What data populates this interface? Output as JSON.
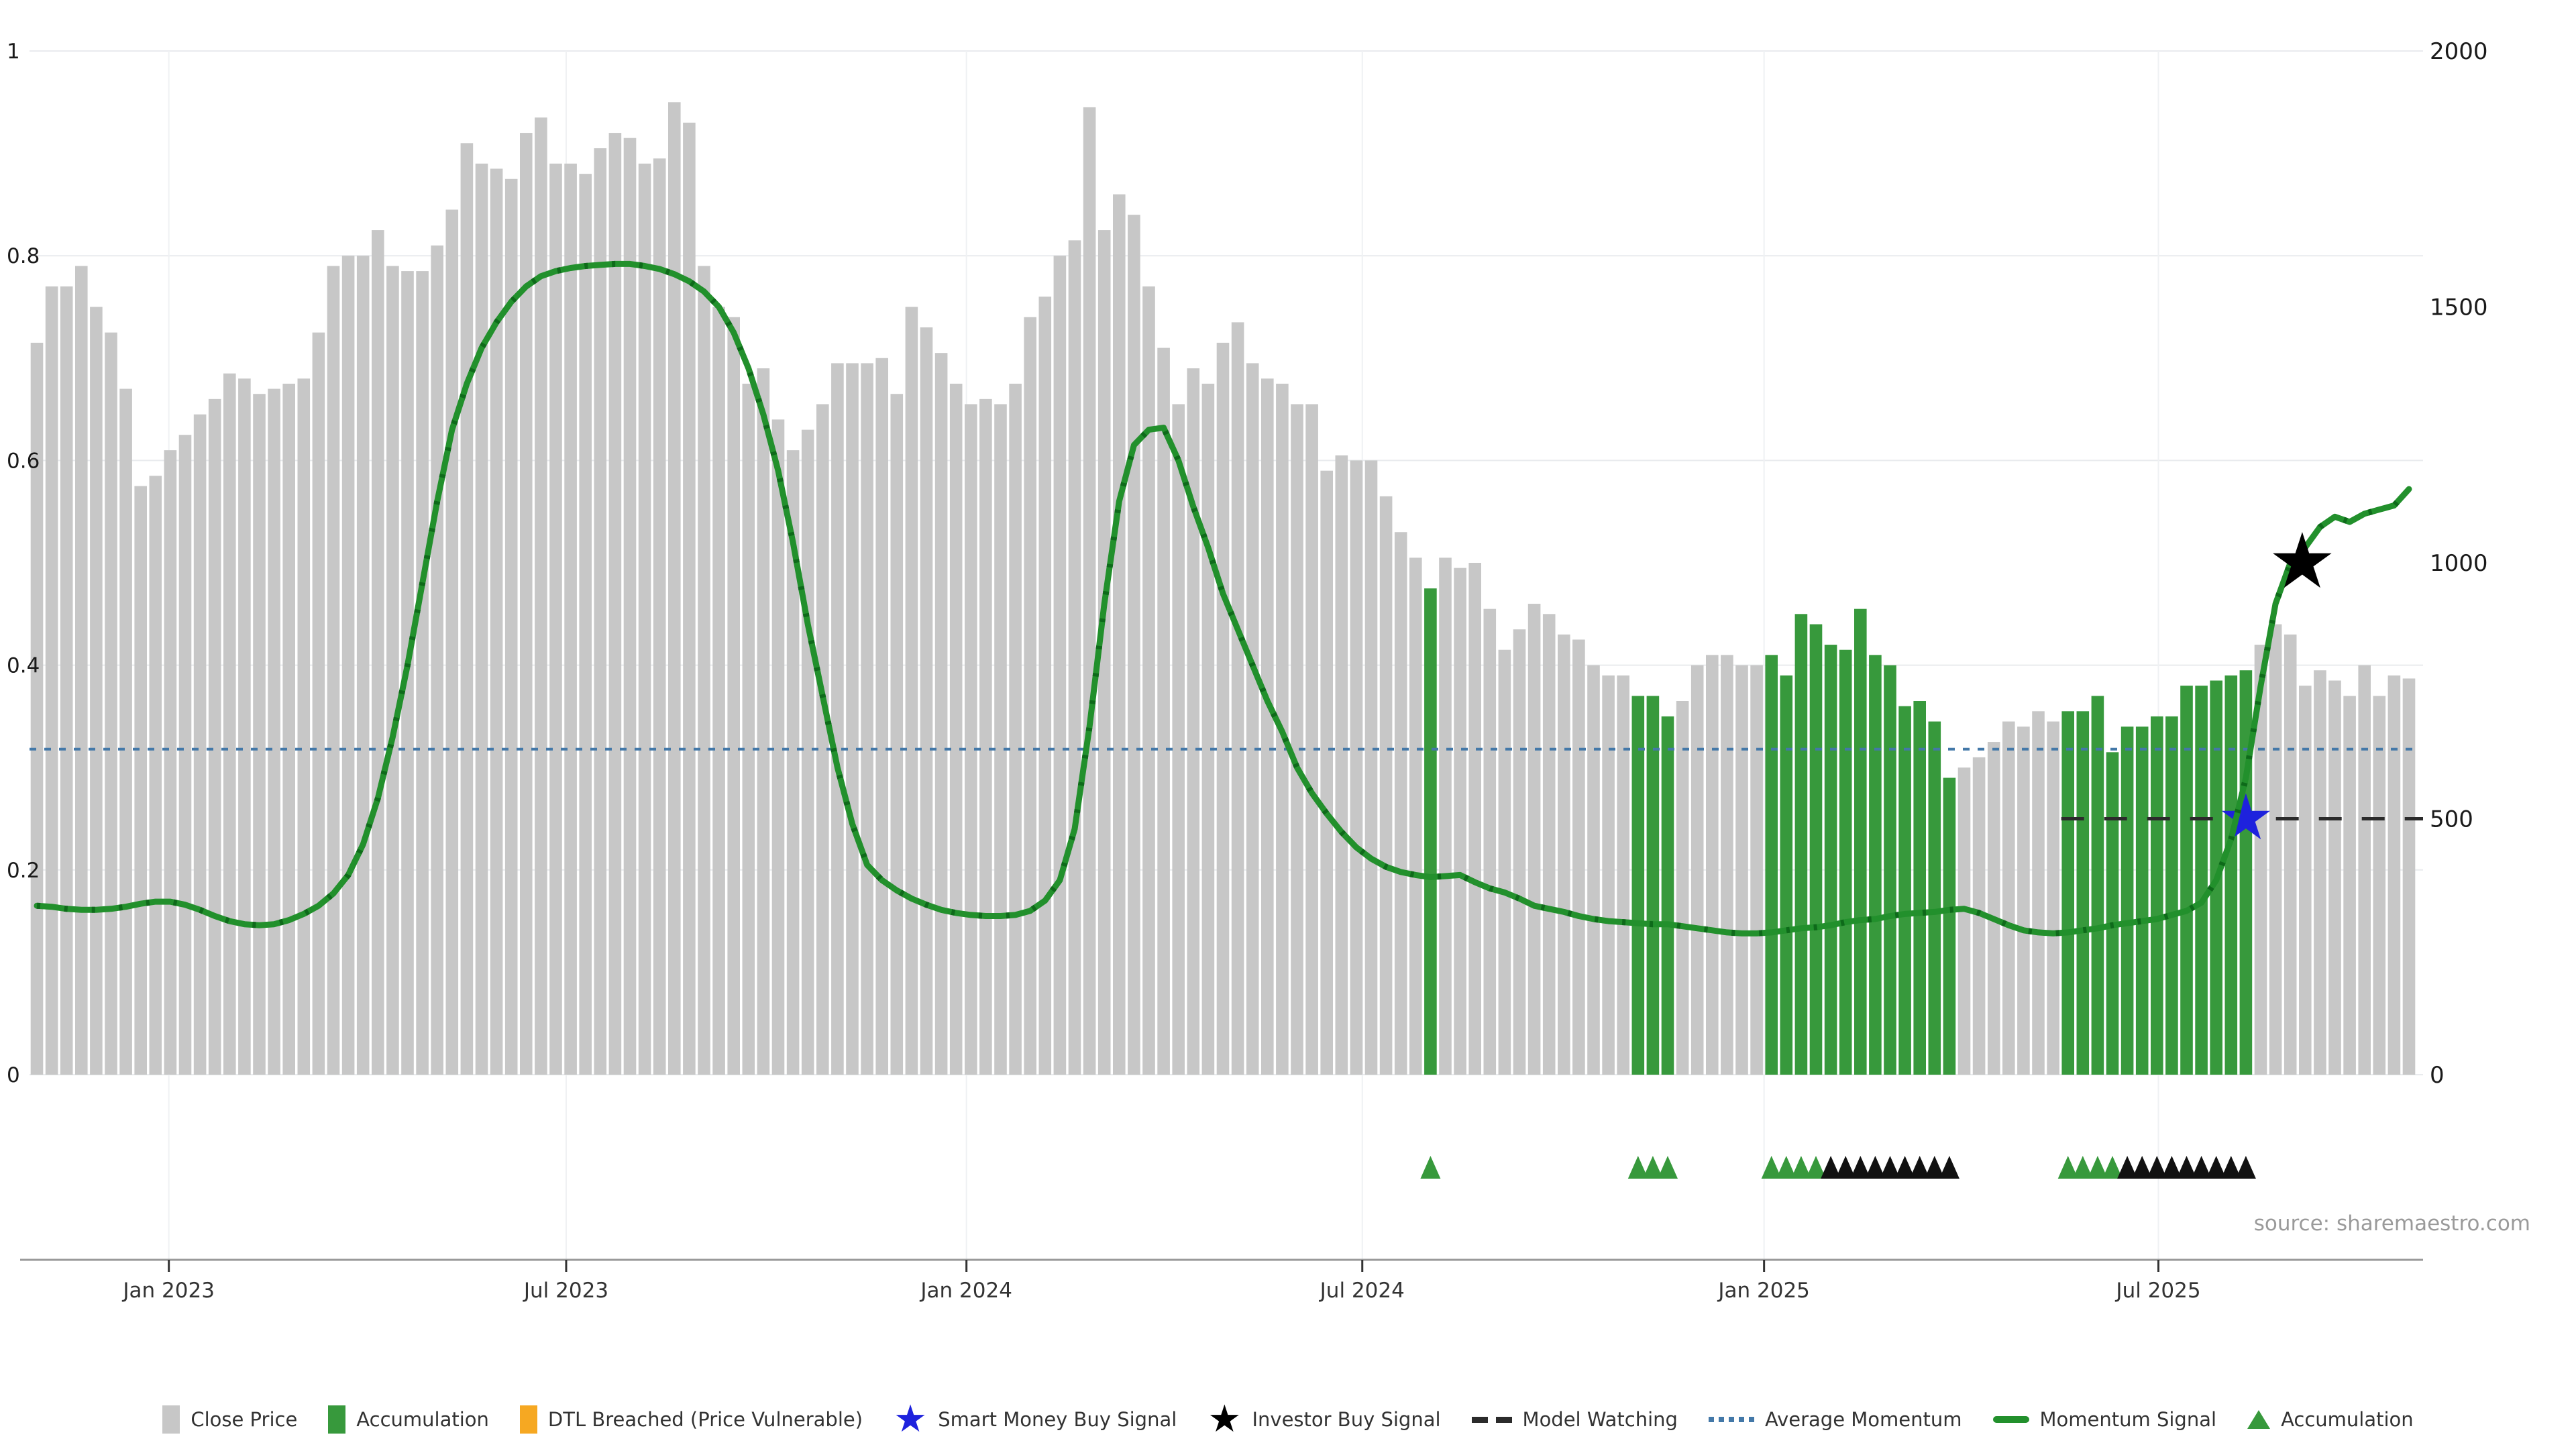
{
  "page": {
    "background": "#ffffff"
  },
  "source_note": "source: sharemaestro.com",
  "colors": {
    "close_price": "#c7c7c7",
    "accumulation": "#37993c",
    "dtl_breached": "#f6a822",
    "momentum_signal": "#22902c",
    "momentum_dash": "#0e6a1a",
    "average_momentum": "#4378a8",
    "model_watching": "#2b2b2b",
    "star_blue": "#1e22dd",
    "star_black": "#000000",
    "grid": "#e9ebee",
    "grid_vertical": "#eff1f3",
    "axis_line": "#9a9a9a",
    "axis_text": "#333333",
    "number_text": "#1a1a1a",
    "source_text": "#9a9a9a"
  },
  "legend": {
    "items": [
      {
        "glyph": "swatch",
        "color": "close_price",
        "label": "Close Price"
      },
      {
        "glyph": "swatch",
        "color": "accumulation",
        "label": "Accumulation"
      },
      {
        "glyph": "swatch",
        "color": "dtl_breached",
        "label": "DTL Breached (Price Vulnerable)"
      },
      {
        "glyph": "star",
        "color": "star_blue",
        "label": "Smart Money Buy Signal"
      },
      {
        "glyph": "star",
        "color": "star_black",
        "label": "Investor Buy Signal"
      },
      {
        "glyph": "dash",
        "color": "model_watching",
        "label": "Model Watching"
      },
      {
        "glyph": "dots",
        "color": "average_momentum",
        "label": "Average Momentum"
      },
      {
        "glyph": "line",
        "color": "momentum_signal",
        "label": "Momentum Signal"
      },
      {
        "glyph": "triangle",
        "color": "accumulation",
        "label": "Accumulation"
      }
    ]
  },
  "chart_data": {
    "type": "bar",
    "title": "",
    "subtitle": "",
    "frequency": "weekly",
    "left_axis": {
      "range": [
        0,
        1
      ],
      "ticks": [
        "0",
        "0.2",
        "0.4",
        "0.6",
        "0.8",
        "1"
      ]
    },
    "right_axis": {
      "range": [
        0,
        2000
      ],
      "ticks": [
        "0",
        "500",
        "1000",
        "1500",
        "2000"
      ]
    },
    "x_ticks": [
      {
        "label": "Jan 2023",
        "index": 8.9
      },
      {
        "label": "Jul 2023",
        "index": 35.7
      },
      {
        "label": "Jan 2024",
        "index": 62.7
      },
      {
        "label": "Jul 2024",
        "index": 89.4
      },
      {
        "label": "Jan 2025",
        "index": 116.5
      },
      {
        "label": "Jul 2025",
        "index": 143.1
      }
    ],
    "grid": "horizontal-and-faint-vertical",
    "legend_position": "bottom-center",
    "close_price": [
      0.715,
      0.77,
      0.77,
      0.79,
      0.75,
      0.725,
      0.67,
      0.575,
      0.585,
      0.61,
      0.625,
      0.645,
      0.66,
      0.685,
      0.68,
      0.665,
      0.67,
      0.675,
      0.68,
      0.725,
      0.79,
      0.8,
      0.8,
      0.825,
      0.79,
      0.785,
      0.785,
      0.81,
      0.845,
      0.91,
      0.89,
      0.885,
      0.875,
      0.92,
      0.935,
      0.89,
      0.89,
      0.88,
      0.905,
      0.92,
      0.915,
      0.89,
      0.895,
      0.95,
      0.93,
      0.79,
      0.75,
      0.74,
      0.675,
      0.69,
      0.64,
      0.61,
      0.63,
      0.655,
      0.695,
      0.695,
      0.695,
      0.7,
      0.665,
      0.75,
      0.73,
      0.705,
      0.675,
      0.655,
      0.66,
      0.655,
      0.675,
      0.74,
      0.76,
      0.8,
      0.815,
      0.945,
      0.825,
      0.86,
      0.84,
      0.77,
      0.71,
      0.655,
      0.69,
      0.675,
      0.715,
      0.735,
      0.695,
      0.68,
      0.675,
      0.655,
      0.655,
      0.59,
      0.605,
      0.6,
      0.6,
      0.565,
      0.53,
      0.505,
      0.475,
      0.505,
      0.495,
      0.5,
      0.455,
      0.415,
      0.435,
      0.46,
      0.45,
      0.43,
      0.425,
      0.4,
      0.39,
      0.39,
      0.37,
      0.37,
      0.35,
      0.365,
      0.4,
      0.41,
      0.41,
      0.4,
      0.4,
      0.41,
      0.39,
      0.45,
      0.44,
      0.42,
      0.415,
      0.455,
      0.41,
      0.4,
      0.36,
      0.365,
      0.345,
      0.29,
      0.3,
      0.31,
      0.325,
      0.345,
      0.34,
      0.355,
      0.345,
      0.355,
      0.355,
      0.37,
      0.315,
      0.34,
      0.34,
      0.35,
      0.35,
      0.38,
      0.38,
      0.385,
      0.39,
      0.395,
      0.42,
      0.44,
      0.43,
      0.38,
      0.395,
      0.385,
      0.37,
      0.4,
      0.37,
      0.39,
      0.387
    ],
    "momentum_signal": [
      0.165,
      0.164,
      0.162,
      0.161,
      0.161,
      0.162,
      0.164,
      0.167,
      0.169,
      0.169,
      0.166,
      0.161,
      0.155,
      0.15,
      0.147,
      0.146,
      0.147,
      0.151,
      0.157,
      0.165,
      0.177,
      0.195,
      0.225,
      0.27,
      0.33,
      0.4,
      0.48,
      0.56,
      0.63,
      0.675,
      0.71,
      0.735,
      0.755,
      0.77,
      0.78,
      0.785,
      0.788,
      0.79,
      0.791,
      0.792,
      0.792,
      0.79,
      0.787,
      0.782,
      0.775,
      0.765,
      0.75,
      0.725,
      0.69,
      0.645,
      0.59,
      0.52,
      0.44,
      0.37,
      0.3,
      0.245,
      0.205,
      0.19,
      0.18,
      0.172,
      0.166,
      0.161,
      0.158,
      0.156,
      0.155,
      0.155,
      0.156,
      0.16,
      0.17,
      0.19,
      0.24,
      0.34,
      0.46,
      0.56,
      0.615,
      0.63,
      0.632,
      0.6,
      0.555,
      0.515,
      0.47,
      0.435,
      0.4,
      0.365,
      0.335,
      0.3,
      0.275,
      0.255,
      0.237,
      0.222,
      0.211,
      0.203,
      0.198,
      0.195,
      0.193,
      0.194,
      0.195,
      0.188,
      0.182,
      0.178,
      0.172,
      0.165,
      0.162,
      0.159,
      0.155,
      0.152,
      0.15,
      0.149,
      0.148,
      0.147,
      0.147,
      0.145,
      0.143,
      0.141,
      0.139,
      0.138,
      0.138,
      0.139,
      0.141,
      0.143,
      0.144,
      0.146,
      0.149,
      0.151,
      0.152,
      0.155,
      0.157,
      0.158,
      0.159,
      0.161,
      0.162,
      0.158,
      0.152,
      0.146,
      0.141,
      0.139,
      0.138,
      0.139,
      0.141,
      0.143,
      0.146,
      0.148,
      0.15,
      0.152,
      0.156,
      0.16,
      0.168,
      0.19,
      0.23,
      0.29,
      0.38,
      0.46,
      0.5,
      0.515,
      0.535,
      0.545,
      0.54,
      0.548,
      0.552,
      0.556,
      0.572
    ],
    "average_momentum": 0.318,
    "model_watching": {
      "value": 0.25,
      "start_index": 137
    },
    "accumulation_indices": [
      94,
      108,
      109,
      110,
      117,
      118,
      119,
      120,
      121,
      122,
      123,
      124,
      125,
      126,
      127,
      128,
      129,
      137,
      138,
      139,
      140,
      141,
      142,
      143,
      144,
      145,
      146,
      147,
      148,
      149
    ],
    "markers": {
      "smart_money_buy_signal": {
        "index": 149,
        "value": 0.25
      },
      "investor_buy_signal": {
        "index": 152.8,
        "value": 0.5
      },
      "triangles_green": [
        94,
        108,
        109,
        110,
        117,
        118,
        119,
        120,
        137,
        138,
        139,
        140
      ],
      "triangles_black": [
        121,
        122,
        123,
        124,
        125,
        126,
        127,
        128,
        129,
        141,
        142,
        143,
        144,
        145,
        146,
        147,
        148,
        149
      ]
    },
    "source": "source: sharemaestro.com"
  }
}
